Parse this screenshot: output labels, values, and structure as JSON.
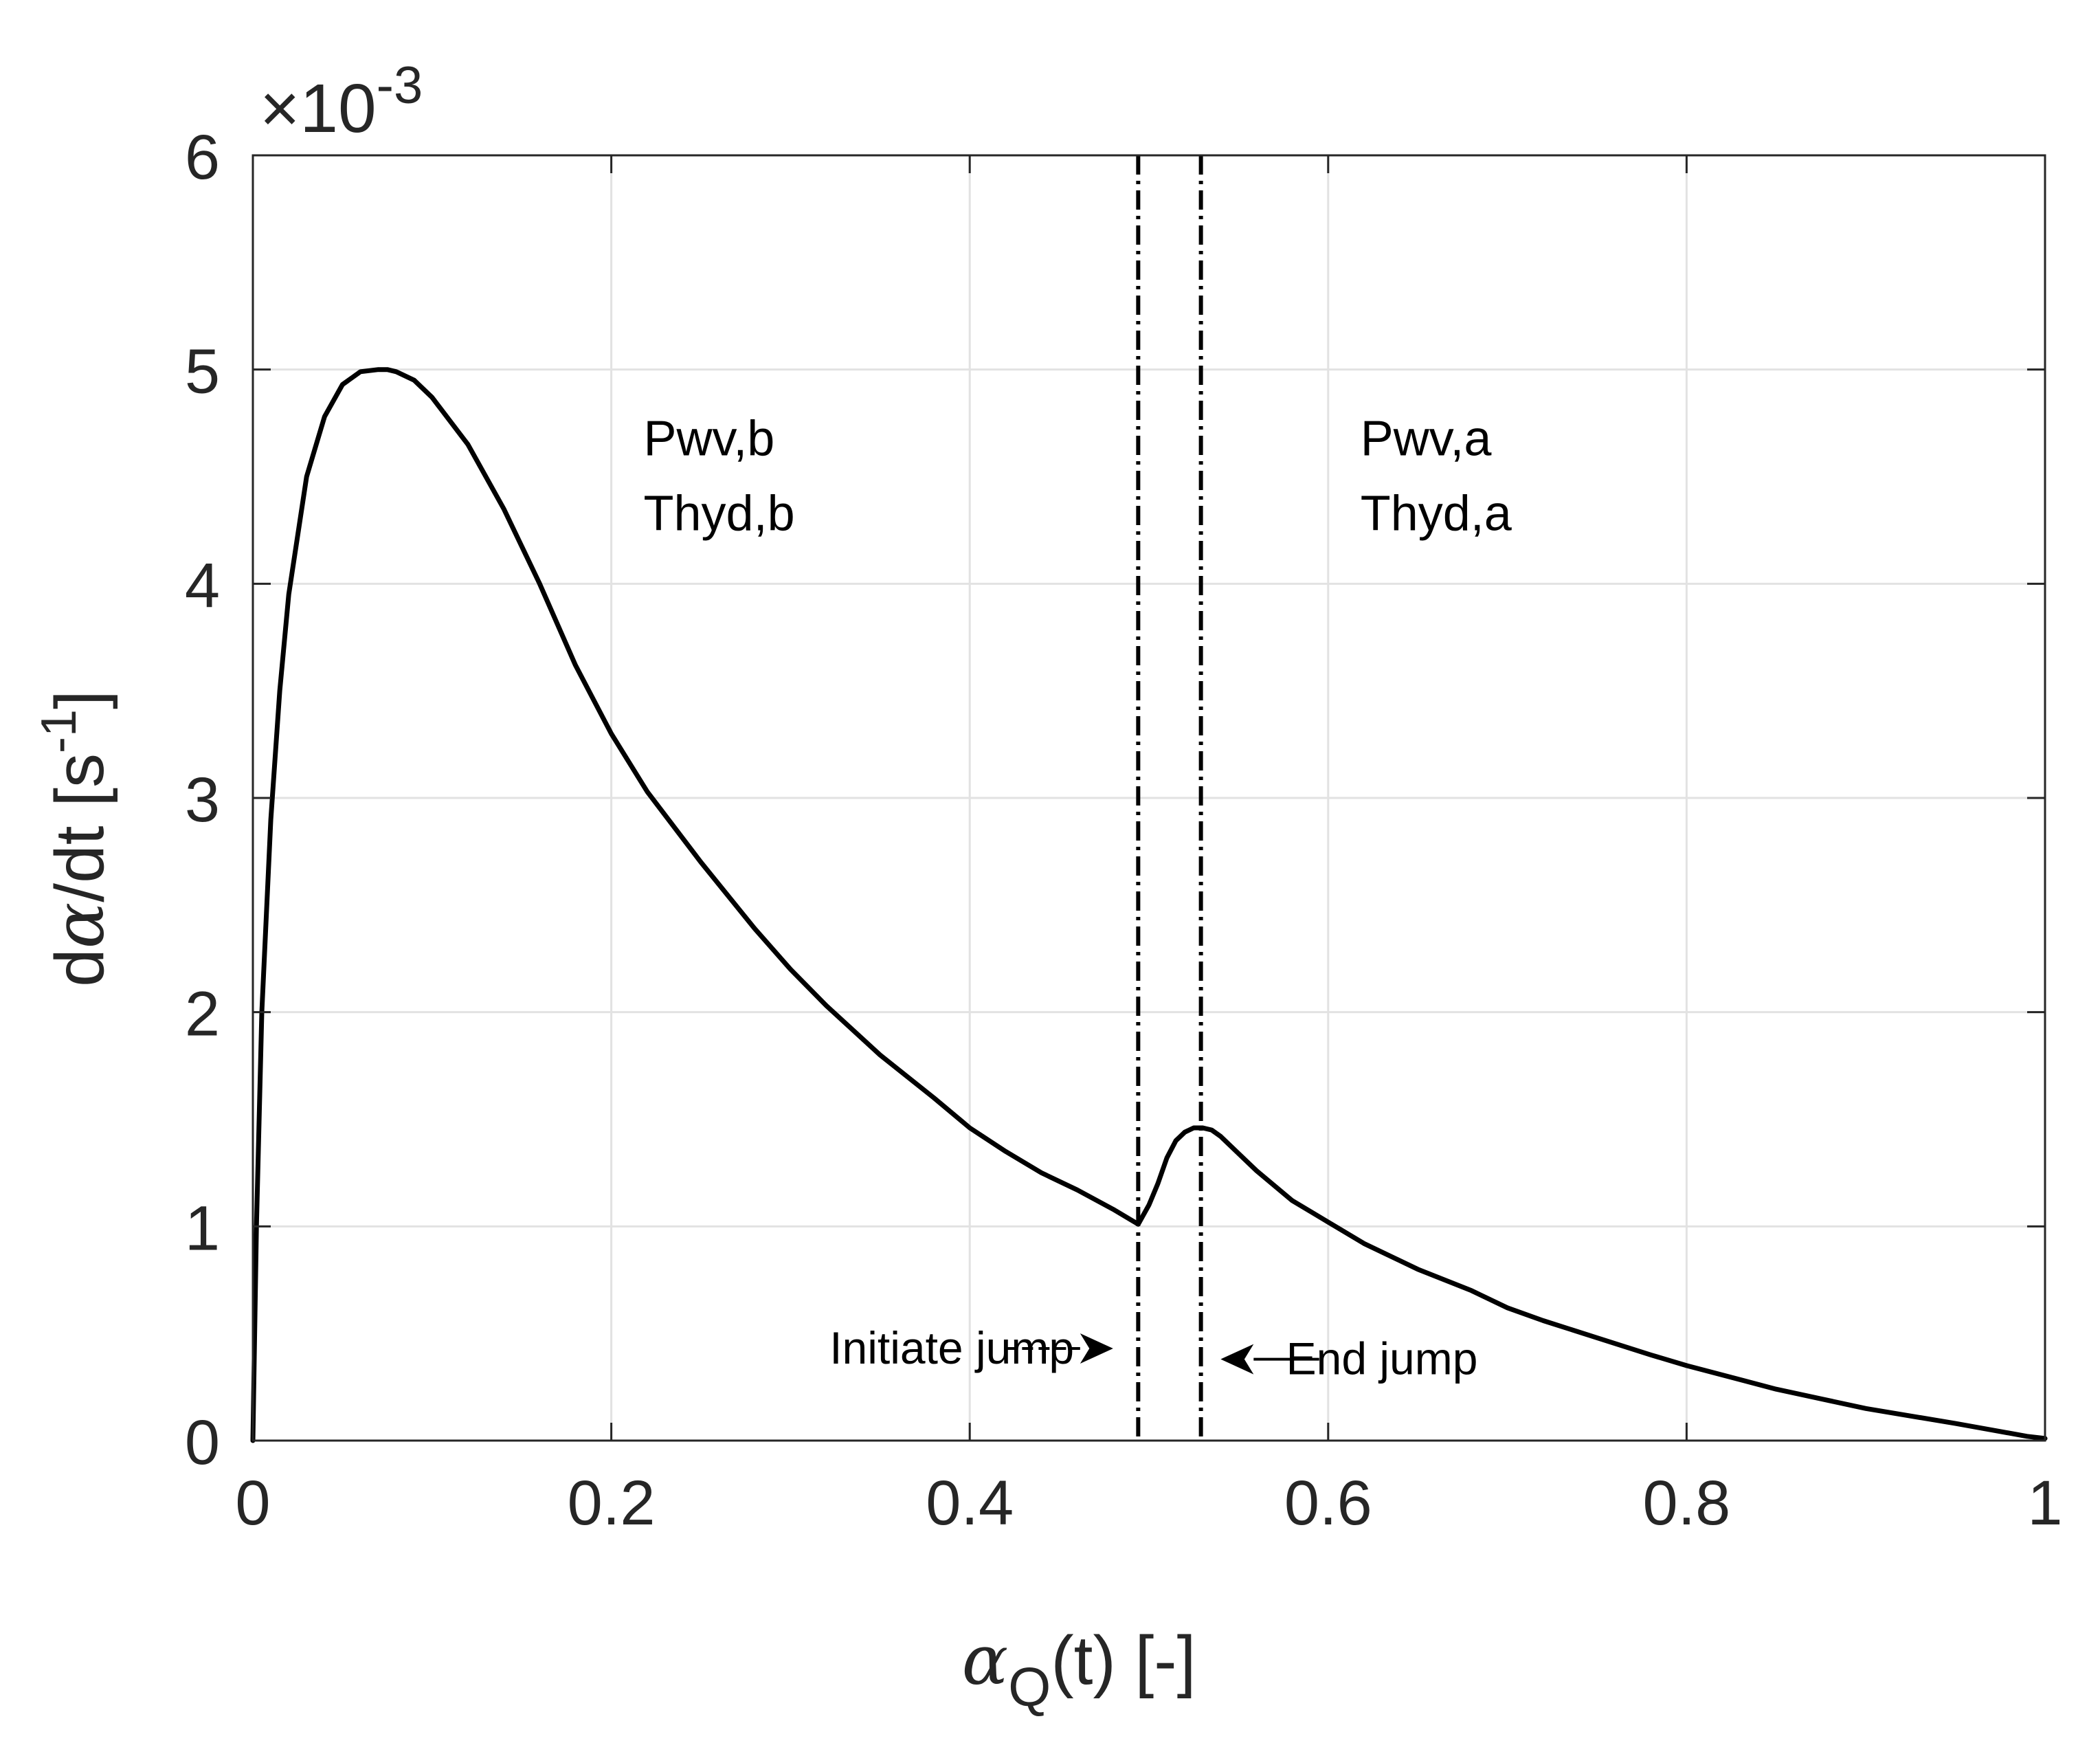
{
  "chart_data": {
    "type": "line",
    "xlabel": {
      "symbol": "α",
      "subscript": "Q",
      "rest": "(t) [-]"
    },
    "ylabel": {
      "prefix": "d",
      "symbol": "α",
      "rest": "/dt [s",
      "sup": "-1",
      "close": "]"
    },
    "y_multiplier": {
      "base": "×10",
      "exp": "-3"
    },
    "xlim": [
      0,
      1
    ],
    "ylim": [
      0,
      6
    ],
    "xticks": [
      0,
      0.2,
      0.4,
      0.6,
      0.8,
      1
    ],
    "xtick_labels": [
      "0",
      "0.2",
      "0.4",
      "0.6",
      "0.8",
      "1"
    ],
    "yticks": [
      0,
      1,
      2,
      3,
      4,
      5,
      6
    ],
    "ytick_labels": [
      "0",
      "1",
      "2",
      "3",
      "4",
      "5",
      "6"
    ],
    "grid": true,
    "series": [
      {
        "name": "dα/dt",
        "color": "#000000",
        "x": [
          0,
          0.002,
          0.005,
          0.01,
          0.015,
          0.02,
          0.03,
          0.04,
          0.05,
          0.06,
          0.07,
          0.075,
          0.08,
          0.09,
          0.1,
          0.12,
          0.14,
          0.16,
          0.18,
          0.2,
          0.22,
          0.25,
          0.28,
          0.3,
          0.32,
          0.35,
          0.38,
          0.4,
          0.42,
          0.44,
          0.46,
          0.48,
          0.494,
          0.5,
          0.505,
          0.51,
          0.515,
          0.52,
          0.525,
          0.53,
          0.535,
          0.54,
          0.55,
          0.56,
          0.58,
          0.6,
          0.62,
          0.65,
          0.68,
          0.7,
          0.72,
          0.75,
          0.78,
          0.8,
          0.85,
          0.9,
          0.95,
          0.97,
          0.99,
          1.0
        ],
        "y": [
          0,
          1.0,
          2.0,
          2.9,
          3.5,
          3.95,
          4.5,
          4.78,
          4.93,
          4.99,
          5.0,
          5.0,
          4.99,
          4.95,
          4.87,
          4.65,
          4.35,
          4.0,
          3.62,
          3.3,
          3.03,
          2.7,
          2.39,
          2.2,
          2.03,
          1.8,
          1.6,
          1.46,
          1.35,
          1.25,
          1.17,
          1.08,
          1.01,
          1.1,
          1.2,
          1.32,
          1.4,
          1.44,
          1.46,
          1.46,
          1.45,
          1.42,
          1.34,
          1.26,
          1.12,
          1.02,
          0.92,
          0.8,
          0.7,
          0.62,
          0.56,
          0.48,
          0.4,
          0.35,
          0.24,
          0.15,
          0.08,
          0.05,
          0.02,
          0.01
        ]
      }
    ],
    "vertical_markers": [
      {
        "name": "initiate-jump-line",
        "x": 0.494
      },
      {
        "name": "end-jump-line",
        "x": 0.529
      }
    ],
    "annotations": [
      {
        "name": "initiate-jump",
        "text": "Initiate jump",
        "x": 0.39,
        "y": 0.43,
        "arrow_from_x": 0.42,
        "arrow_to_x": 0.48
      },
      {
        "name": "end-jump",
        "text": "End jump",
        "x": 0.63,
        "y": 0.38,
        "arrow_from_x": 0.595,
        "arrow_to_x": 0.54
      }
    ],
    "region_labels": [
      {
        "name": "before",
        "lines": [
          "Pwv,b",
          "Thyd,b"
        ],
        "x": 0.218,
        "y": [
          4.6,
          4.25
        ]
      },
      {
        "name": "after",
        "lines": [
          "Pwv,a",
          "Thyd,a"
        ],
        "x": 0.618,
        "y": [
          4.6,
          4.25
        ]
      }
    ]
  }
}
